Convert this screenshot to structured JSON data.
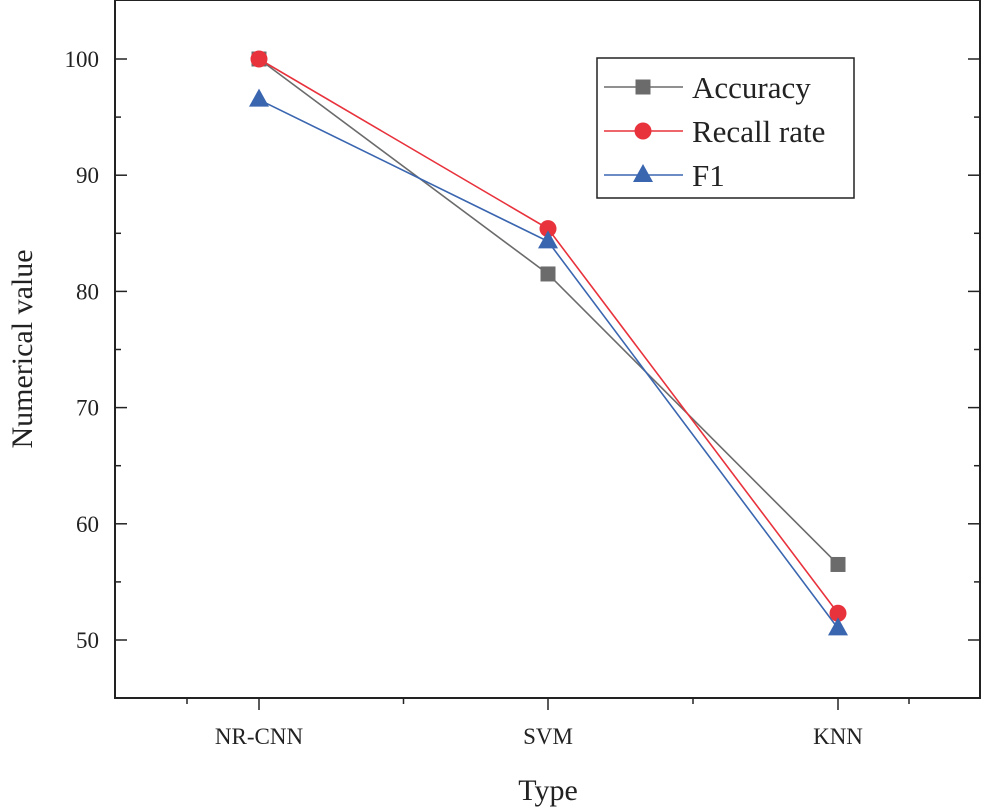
{
  "chart_data": {
    "type": "line",
    "title": "",
    "xlabel": "Type",
    "ylabel": "Numerical value",
    "categories": [
      "NR-CNN",
      "SVM",
      "KNN"
    ],
    "ylim": [
      45,
      105
    ],
    "yticks": [
      50,
      60,
      70,
      80,
      90,
      100
    ],
    "ytick_labels": [
      "50",
      "60",
      "70",
      "80",
      "90",
      "100"
    ],
    "legend_position": "top-right",
    "grid": false,
    "series": [
      {
        "name": "Accuracy",
        "marker": "square",
        "color": "#6b6b6b",
        "values": [
          100,
          81.5,
          56.5
        ]
      },
      {
        "name": "Recall rate",
        "marker": "circle",
        "color": "#e8323c",
        "values": [
          100,
          85.4,
          52.3
        ]
      },
      {
        "name": "F1",
        "marker": "triangle",
        "color": "#3a66b0",
        "values": [
          96.5,
          84.3,
          51.0
        ]
      }
    ]
  }
}
